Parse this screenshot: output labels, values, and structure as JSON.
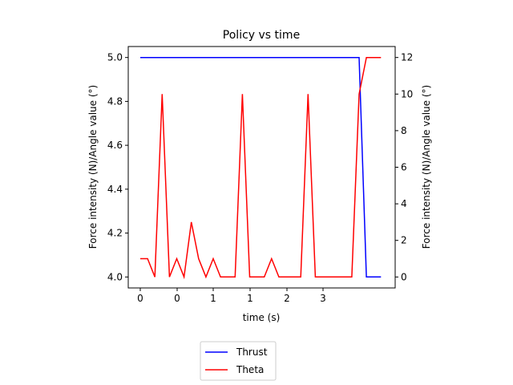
{
  "chart_data": {
    "type": "line",
    "title": "Policy vs time",
    "xlabel": "time (s)",
    "ylabel_left": "Force intensity (N)/Angle value (°)",
    "ylabel_right": "Force intensity (N)/Angle value (°)",
    "xticks": [
      "0",
      "0",
      "1",
      "1",
      "2",
      "3"
    ],
    "yticks_left": [
      "4.0",
      "4.2",
      "4.4",
      "4.6",
      "4.8",
      "5.0"
    ],
    "yticks_right": [
      "0",
      "2",
      "4",
      "6",
      "8",
      "10",
      "12"
    ],
    "ylim_left": [
      3.95,
      5.05
    ],
    "ylim_right": [
      -0.6,
      12.6
    ],
    "grid": false,
    "legend_position": "bottom-center",
    "series": [
      {
        "name": "Thrust",
        "axis": "left",
        "color": "#0000ff",
        "values": [
          5.0,
          5.0,
          5.0,
          5.0,
          5.0,
          5.0,
          5.0,
          5.0,
          5.0,
          5.0,
          5.0,
          5.0,
          5.0,
          5.0,
          5.0,
          5.0,
          5.0,
          5.0,
          5.0,
          5.0,
          5.0,
          5.0,
          5.0,
          5.0,
          5.0,
          5.0,
          5.0,
          5.0,
          5.0,
          5.0,
          5.0,
          4.0,
          4.0,
          4.0
        ]
      },
      {
        "name": "Theta",
        "axis": "right",
        "color": "#ff0000",
        "values": [
          1,
          1,
          0,
          10,
          0,
          1,
          0,
          3,
          1,
          0,
          1,
          0,
          0,
          0,
          10,
          0,
          0,
          0,
          1,
          0,
          0,
          0,
          0,
          10,
          0,
          0,
          0,
          0,
          0,
          0,
          10,
          12,
          12,
          12
        ]
      }
    ]
  }
}
